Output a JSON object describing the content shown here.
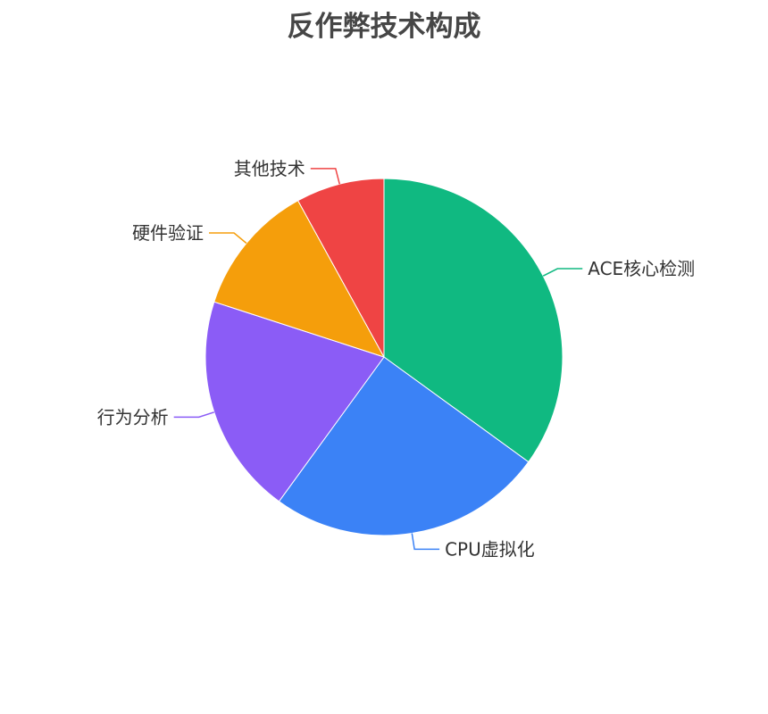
{
  "chart_data": {
    "type": "pie",
    "title": "反作弊技术构成",
    "categories": [
      "ACE核心检测",
      "CPU虚拟化",
      "行为分析",
      "硬件验证",
      "其他技术"
    ],
    "values": [
      35,
      25,
      20,
      12,
      8
    ],
    "colors": [
      "#10b981",
      "#3b82f6",
      "#8b5cf6",
      "#f59e0b",
      "#ef4444"
    ],
    "start_angle": "top",
    "direction": "clockwise",
    "legend": "none",
    "labels": "outside"
  }
}
